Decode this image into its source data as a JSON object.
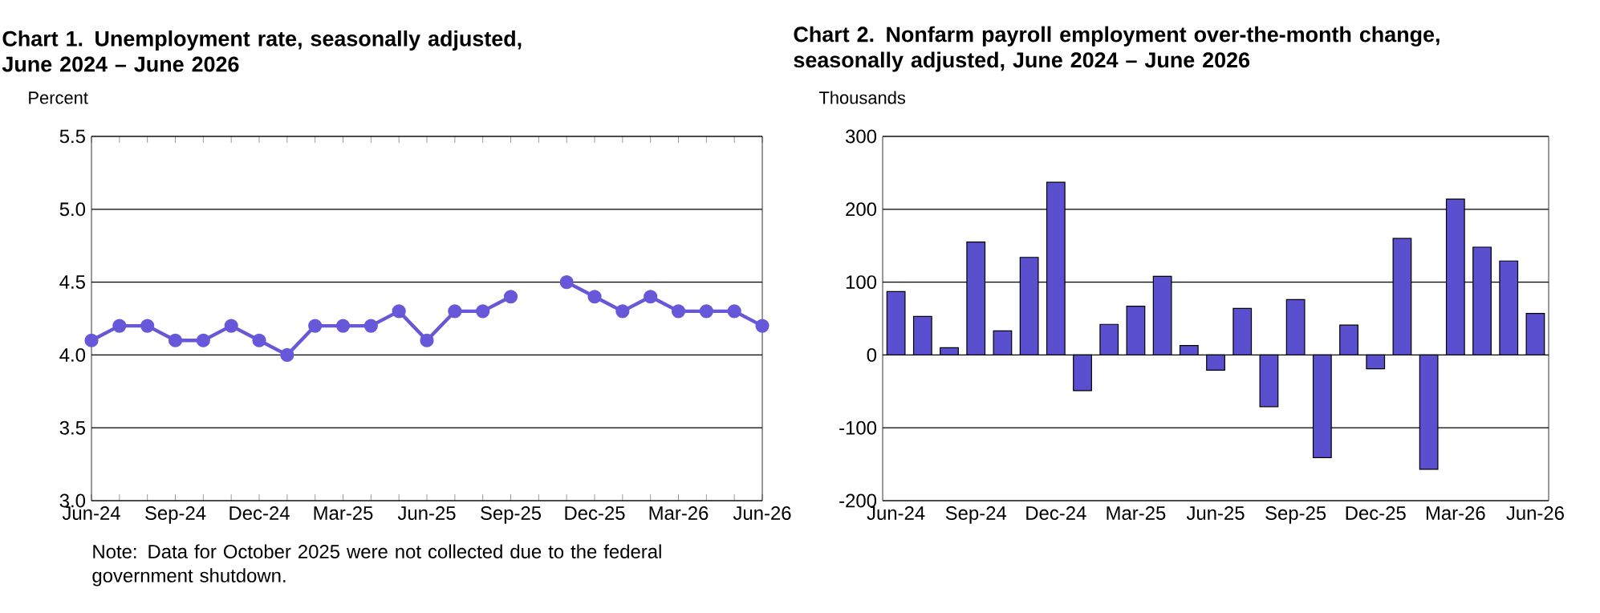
{
  "chart_data": [
    {
      "type": "line",
      "title": "Chart 1. Unemployment rate, seasonally adjusted, June 2024 – June 2026",
      "ylabel": "Percent",
      "categories": [
        "Jun-24",
        null,
        null,
        "Sep-24",
        null,
        null,
        "Dec-24",
        null,
        null,
        "Mar-25",
        null,
        null,
        "Jun-25",
        null,
        null,
        "Sep-25",
        null,
        null,
        "Dec-25",
        null,
        null,
        "Mar-26",
        null,
        null,
        "Jun-26"
      ],
      "values": [
        4.1,
        4.2,
        4.2,
        4.1,
        4.1,
        4.2,
        4.1,
        4.0,
        4.2,
        4.2,
        4.2,
        4.3,
        4.1,
        4.3,
        4.3,
        4.4,
        null,
        4.5,
        4.4,
        4.3,
        4.4,
        4.3,
        4.3,
        4.3,
        4.2
      ],
      "color": "#6658d8",
      "marker": "circle",
      "grid": "y",
      "ylim": [
        3.0,
        5.5
      ],
      "yticks": [
        {
          "value": 3.0,
          "label": "3.0"
        },
        {
          "value": 3.5,
          "label": "3.5"
        },
        {
          "value": 4.0,
          "label": "4.0"
        },
        {
          "value": 4.5,
          "label": "4.5"
        },
        {
          "value": 5.0,
          "label": "5.0"
        },
        {
          "value": 5.5,
          "label": "5.5"
        }
      ],
      "annotations": [
        "Note: Data for October 2025 were not collected due to the federal government shutdown."
      ]
    },
    {
      "type": "bar",
      "title": "Chart 2. Nonfarm payroll employment over-the-month change, seasonally adjusted, June 2024 – June 2026",
      "ylabel": "Thousands",
      "categories": [
        "Jun-24",
        null,
        null,
        "Sep-24",
        null,
        null,
        "Dec-24",
        null,
        null,
        "Mar-25",
        null,
        null,
        "Jun-25",
        null,
        null,
        "Sep-25",
        null,
        null,
        "Dec-25",
        null,
        null,
        "Mar-26",
        null,
        null,
        "Jun-26"
      ],
      "values": [
        87,
        53,
        10,
        155,
        33,
        134,
        237,
        -49,
        42,
        67,
        108,
        13,
        -21,
        64,
        -71,
        76,
        -141,
        41,
        -19,
        160,
        -157,
        214,
        148,
        129,
        57
      ],
      "color": "#5a4fcf",
      "grid": "y",
      "ylim": [
        -200,
        300
      ],
      "yticks": [
        -200,
        -100,
        0,
        100,
        200,
        300
      ]
    }
  ]
}
